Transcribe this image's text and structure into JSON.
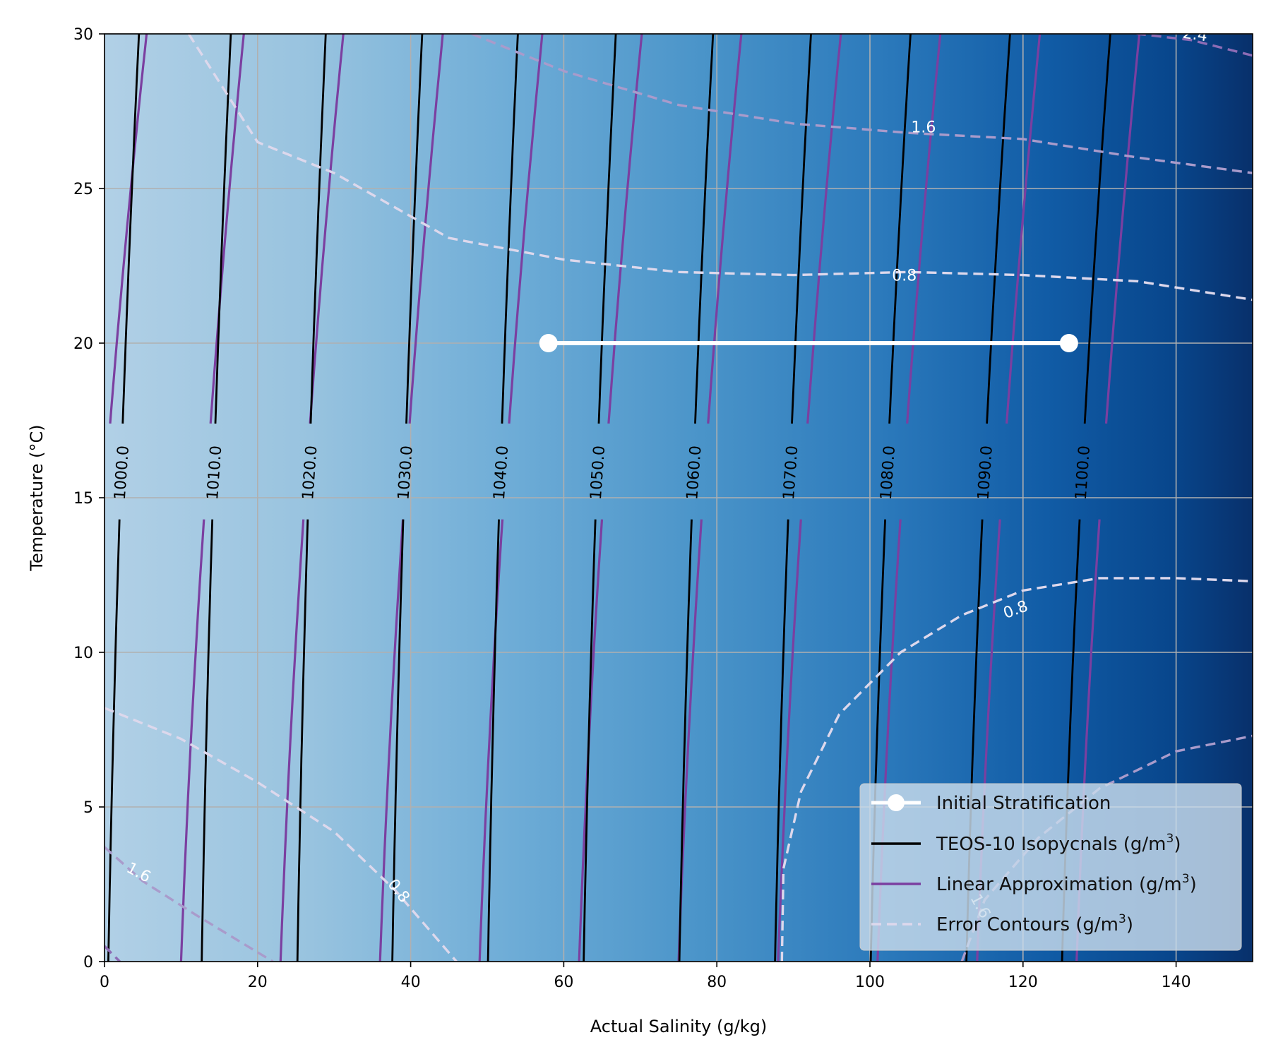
{
  "chart_data": {
    "type": "contour",
    "title": "",
    "xlabel": "Actual Salinity (g/kg)",
    "ylabel": "Temperature (°C)",
    "xlim": [
      0,
      150
    ],
    "ylim": [
      0,
      30
    ],
    "xticks": [
      0,
      20,
      40,
      60,
      80,
      100,
      120,
      140
    ],
    "yticks": [
      0,
      5,
      10,
      15,
      20,
      25,
      30
    ],
    "grid": true,
    "background": {
      "description": "density colormap",
      "low_color": "#b3d1e6",
      "high_color": "#08306b"
    },
    "isopycnals": {
      "levels": [
        1000,
        1010,
        1020,
        1030,
        1040,
        1050,
        1060,
        1070,
        1080,
        1090,
        1100
      ],
      "labels": [
        "1000.0",
        "1010.0",
        "1020.0",
        "1030.0",
        "1040.0",
        "1050.0",
        "1060.0",
        "1070.0",
        "1080.0",
        "1090.0",
        "1100.0"
      ],
      "teos10_x_at_T0": [
        0.5,
        12.7,
        25.2,
        37.6,
        50.1,
        62.6,
        75.1,
        87.6,
        100.1,
        112.6,
        125.1
      ],
      "teos10_x_at_T30": [
        4.5,
        16.5,
        28.9,
        41.5,
        54.0,
        66.8,
        79.5,
        92.3,
        105.3,
        118.3,
        131.4
      ],
      "linear_x_at_T0": [
        -3.5,
        10.0,
        23.0,
        36.0,
        49.0,
        62.0,
        75.0,
        88.0,
        101.0,
        114.0,
        127.0
      ],
      "linear_x_at_T30": [
        5.5,
        18.2,
        31.2,
        44.2,
        57.2,
        70.2,
        83.2,
        96.2,
        109.2,
        122.2,
        135.2
      ]
    },
    "error_contours": [
      {
        "level": 0.8,
        "label": "0.8",
        "segment": "upper-left",
        "points": [
          [
            11,
            30
          ],
          [
            20,
            26.5
          ],
          [
            30,
            25.5
          ],
          [
            45,
            23.4
          ],
          [
            60,
            22.7
          ],
          [
            75,
            22.3
          ],
          [
            90,
            22.2
          ],
          [
            105,
            22.3
          ],
          [
            120,
            22.2
          ],
          [
            135,
            22.0
          ],
          [
            150,
            21.4
          ]
        ]
      },
      {
        "level": 0.8,
        "label": "0.8",
        "segment": "lower-left",
        "points": [
          [
            0,
            8.2
          ],
          [
            10,
            7.2
          ],
          [
            20,
            5.8
          ],
          [
            30,
            4.2
          ],
          [
            38,
            2.3
          ],
          [
            46,
            0
          ]
        ]
      },
      {
        "level": 0.8,
        "label": "0.8",
        "segment": "lower-right",
        "points": [
          [
            88.5,
            0
          ],
          [
            88.7,
            3
          ],
          [
            91,
            5.5
          ],
          [
            96,
            8
          ],
          [
            104,
            10
          ],
          [
            112,
            11.2
          ],
          [
            120,
            12
          ],
          [
            130,
            12.4
          ],
          [
            140,
            12.4
          ],
          [
            150,
            12.3
          ]
        ]
      },
      {
        "level": 1.6,
        "label": "1.6",
        "segment": "upper",
        "points": [
          [
            48,
            30
          ],
          [
            60,
            28.8
          ],
          [
            75,
            27.7
          ],
          [
            90,
            27.1
          ],
          [
            105,
            26.8
          ],
          [
            120,
            26.6
          ],
          [
            135,
            26.0
          ],
          [
            150,
            25.5
          ]
        ]
      },
      {
        "level": 1.6,
        "label": "1.6",
        "segment": "lower-left",
        "points": [
          [
            0,
            3.7
          ],
          [
            5,
            2.6
          ],
          [
            12,
            1.5
          ],
          [
            20,
            0.3
          ],
          [
            22,
            0
          ]
        ]
      },
      {
        "level": 1.6,
        "label": "1.6",
        "segment": "lower-right",
        "points": [
          [
            112,
            0
          ],
          [
            115,
            2
          ],
          [
            122,
            4
          ],
          [
            130,
            5.6
          ],
          [
            140,
            6.8
          ],
          [
            150,
            7.3
          ]
        ]
      },
      {
        "level": 2.4,
        "label": "2.4",
        "segment": "top-right",
        "points": [
          [
            127,
            30.6
          ],
          [
            135,
            30.0
          ],
          [
            142,
            29.8
          ],
          [
            150,
            29.3
          ]
        ]
      },
      {
        "level": 2.4,
        "label": "",
        "segment": "bottom-left",
        "points": [
          [
            0,
            0.5
          ],
          [
            2,
            0
          ]
        ]
      }
    ],
    "initial_stratification": {
      "x": [
        58,
        126
      ],
      "y": [
        20,
        20
      ]
    },
    "legend": {
      "placement": "lower-right",
      "entries": [
        {
          "label": "Initial Stratification",
          "sup": "",
          "close": ""
        },
        {
          "label": "TEOS-10 Isopycnals (g/m",
          "sup": "3",
          "close": ")"
        },
        {
          "label": "Linear Approximation (g/m",
          "sup": "3",
          "close": ")"
        },
        {
          "label": "Error Contours (g/m",
          "sup": "3",
          "close": ")"
        }
      ]
    },
    "colors": {
      "teos10": "#000000",
      "linear": "#7b3fa0",
      "stratification": "#ffffff",
      "error_low": "#ddd8ec",
      "error_mid": "#a99bcb",
      "error_high": "#8d6cb5",
      "grid": "#b0b0b0"
    }
  }
}
